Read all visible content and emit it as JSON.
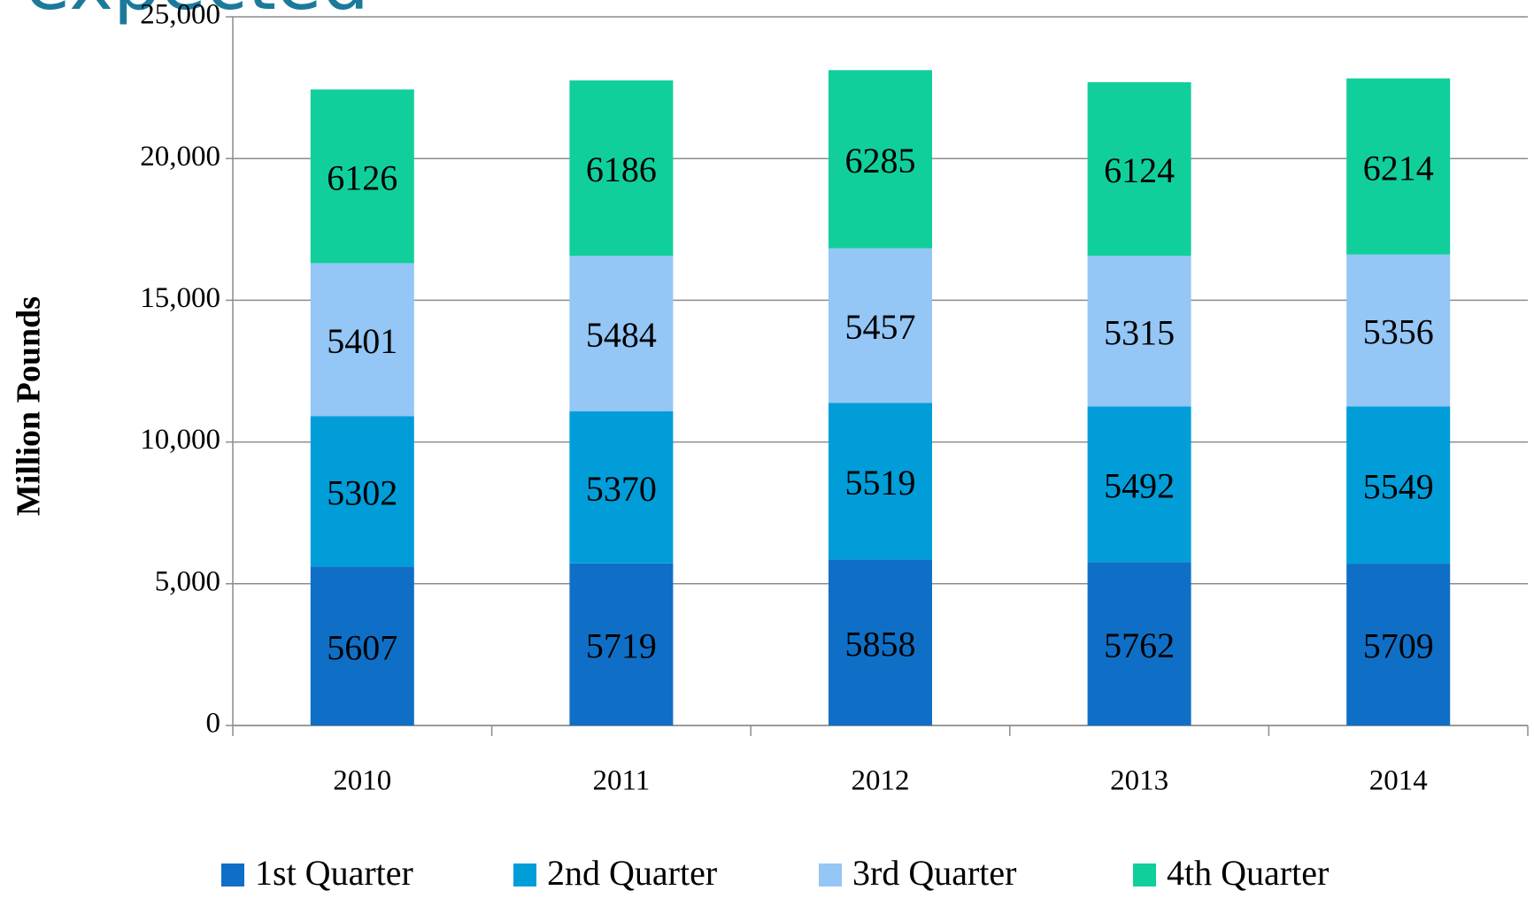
{
  "chart_data": {
    "type": "stacked_bar",
    "title": "expected",
    "y_label": "Million Pounds",
    "categories": [
      "2010",
      "2011",
      "2012",
      "2013",
      "2014"
    ],
    "series": [
      {
        "name": "1st Quarter",
        "color": "#0f6fc6",
        "values": [
          5607,
          5719,
          5858,
          5762,
          5709
        ]
      },
      {
        "name": "2nd Quarter",
        "color": "#009dd9",
        "values": [
          5302,
          5370,
          5519,
          5492,
          5549
        ]
      },
      {
        "name": "3rd Quarter",
        "color": "#94c6f6",
        "values": [
          5401,
          5484,
          5457,
          5315,
          5356
        ]
      },
      {
        "name": "4th Quarter",
        "color": "#10cf9b",
        "values": [
          6126,
          6186,
          6285,
          6124,
          6214
        ]
      }
    ],
    "ylim": [
      0,
      25000
    ],
    "yticks": [
      0,
      {
        "value": 5000,
        "label": "5,000"
      },
      {
        "value": 10000,
        "label": "10,000"
      },
      {
        "value": 15000,
        "label": "15,000"
      },
      {
        "value": 20000,
        "label": "20,000"
      },
      {
        "value": 25000,
        "label": "25,000"
      }
    ],
    "grid": true,
    "legend": "bottom"
  }
}
